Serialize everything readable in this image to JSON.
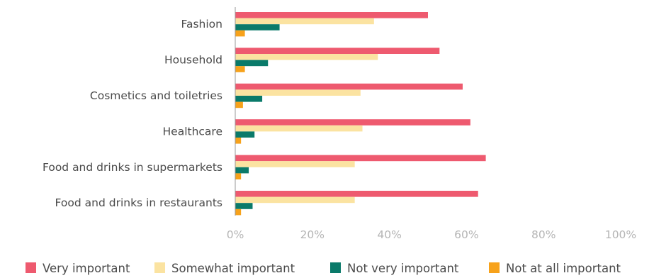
{
  "chart_data": {
    "type": "bar",
    "orientation": "horizontal",
    "categories": [
      "Fashion",
      "Household",
      "Cosmetics and toiletries",
      "Healthcare",
      "Food and drinks in supermarkets",
      "Food and drinks in restaurants"
    ],
    "series": [
      {
        "name": "Very important",
        "color": "#ee5a6f",
        "values": [
          50,
          53,
          59,
          61,
          65,
          63
        ]
      },
      {
        "name": "Somewhat important",
        "color": "#fbe3a1",
        "values": [
          36,
          37,
          32.5,
          33,
          31,
          31
        ]
      },
      {
        "name": "Not very important",
        "color": "#0a7a6a",
        "values": [
          11.5,
          8.5,
          7,
          5,
          3.5,
          4.5
        ]
      },
      {
        "name": "Not at all important",
        "color": "#f7a21b",
        "values": [
          2.5,
          2.5,
          2,
          1.5,
          1.5,
          1.5
        ]
      }
    ],
    "x_ticks": [
      "0%",
      "20%",
      "40%",
      "60%",
      "80%",
      "100%"
    ],
    "xlim": [
      0,
      100
    ],
    "grid": false,
    "legend_position": "bottom"
  }
}
